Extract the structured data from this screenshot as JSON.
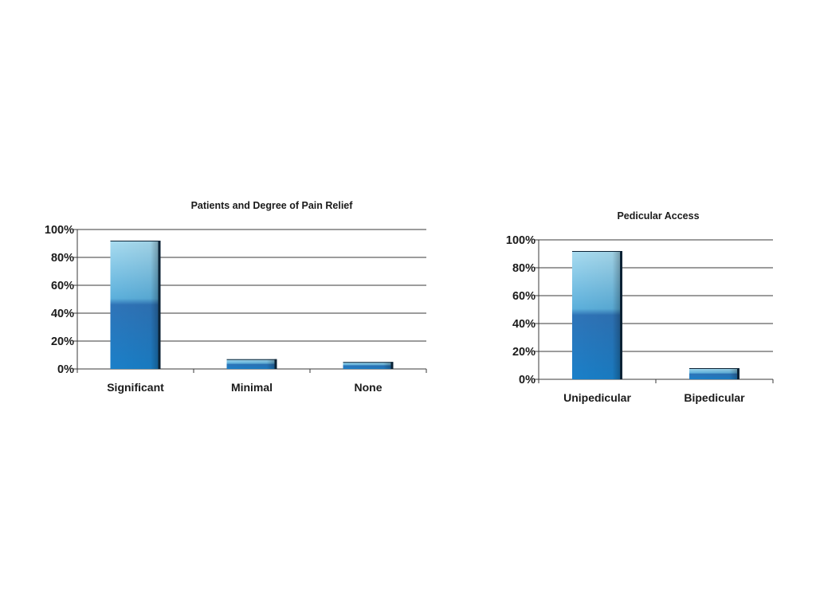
{
  "chart_data": [
    {
      "type": "bar",
      "title": "Patients and Degree of Pain Relief",
      "xlabel": "",
      "ylabel": "",
      "categories": [
        "Significant",
        "Minimal",
        "None"
      ],
      "values": [
        92,
        7,
        5
      ],
      "ylim": [
        0,
        100
      ],
      "yticks": [
        0,
        20,
        40,
        60,
        80,
        100
      ],
      "ytick_labels": [
        "0%",
        "20%",
        "40%",
        "60%",
        "80%",
        "100%"
      ],
      "grid": true,
      "legend": "none",
      "colors": {
        "bar_top": "#a9dcf0",
        "bar_mid": "#5cb0dc",
        "bar_low": "#2f74b8",
        "bar_bottom": "#1a80c9",
        "bar_side": "#0b2235",
        "grid": "#3a3a3a",
        "text": "#1a1a1a"
      }
    },
    {
      "type": "bar",
      "title": "Pedicular Access",
      "xlabel": "",
      "ylabel": "",
      "categories": [
        "Unipedicular",
        "Bipedicular"
      ],
      "values": [
        92,
        8
      ],
      "ylim": [
        0,
        100
      ],
      "yticks": [
        0,
        20,
        40,
        60,
        80,
        100
      ],
      "ytick_labels": [
        "0%",
        "20%",
        "40%",
        "60%",
        "80%",
        "100%"
      ],
      "grid": true,
      "legend": "none",
      "colors": {
        "bar_top": "#a9dcf0",
        "bar_mid": "#5cb0dc",
        "bar_low": "#2f74b8",
        "bar_bottom": "#1a80c9",
        "bar_side": "#0b2235",
        "grid": "#3a3a3a",
        "text": "#1a1a1a"
      }
    }
  ]
}
